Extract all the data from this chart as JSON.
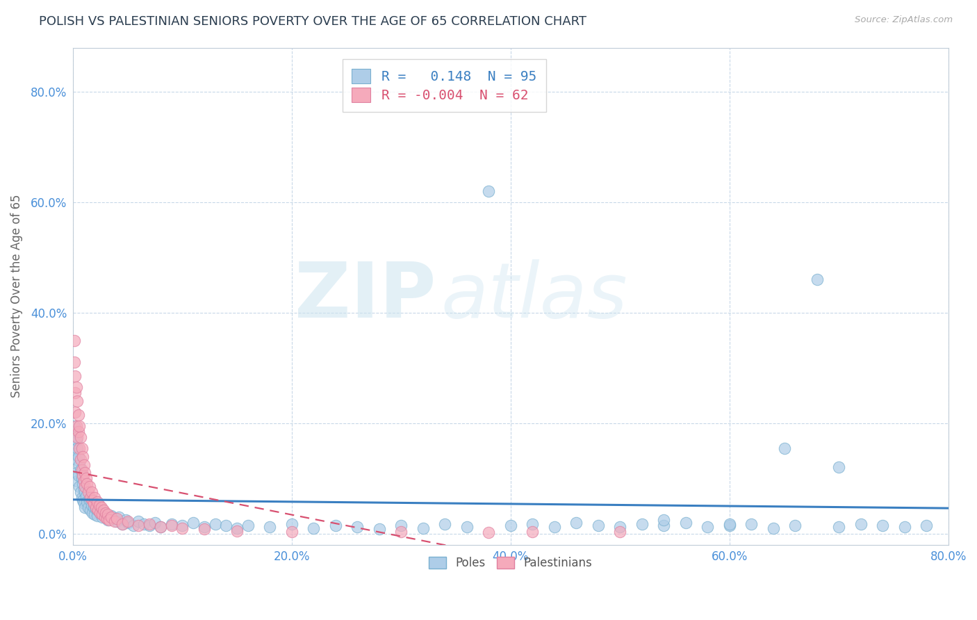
{
  "title": "POLISH VS PALESTINIAN SENIORS POVERTY OVER THE AGE OF 65 CORRELATION CHART",
  "source": "Source: ZipAtlas.com",
  "ylabel": "Seniors Poverty Over the Age of 65",
  "xlim": [
    0.0,
    0.8
  ],
  "ylim": [
    -0.02,
    0.88
  ],
  "yticks": [
    0.0,
    0.2,
    0.4,
    0.6,
    0.8
  ],
  "xticks": [
    0.0,
    0.2,
    0.4,
    0.6,
    0.8
  ],
  "poles_color": "#aecde8",
  "poles_edge_color": "#7ab0d0",
  "palestinians_color": "#f5aabb",
  "palestinians_edge_color": "#e080a0",
  "trend_poles_color": "#3a7fc1",
  "trend_palestinians_color": "#d85070",
  "legend_label_poles": "R =   0.148  N = 95",
  "legend_label_palestinians": "R = -0.004  N = 62",
  "watermark_zip": "ZIP",
  "watermark_atlas": "atlas",
  "background_color": "#ffffff",
  "grid_color": "#c8d8e8",
  "title_color": "#2c3e50",
  "axis_tick_color": "#4a90d9",
  "axis_label_color": "#666666",
  "poles_x": [
    0.001,
    0.001,
    0.002,
    0.002,
    0.003,
    0.003,
    0.003,
    0.004,
    0.004,
    0.005,
    0.005,
    0.006,
    0.006,
    0.007,
    0.007,
    0.008,
    0.008,
    0.009,
    0.009,
    0.01,
    0.01,
    0.011,
    0.011,
    0.012,
    0.013,
    0.014,
    0.015,
    0.016,
    0.017,
    0.018,
    0.019,
    0.02,
    0.021,
    0.022,
    0.023,
    0.025,
    0.027,
    0.03,
    0.032,
    0.035,
    0.038,
    0.04,
    0.042,
    0.045,
    0.048,
    0.05,
    0.055,
    0.06,
    0.065,
    0.07,
    0.075,
    0.08,
    0.09,
    0.1,
    0.11,
    0.12,
    0.13,
    0.14,
    0.15,
    0.16,
    0.18,
    0.2,
    0.22,
    0.24,
    0.26,
    0.28,
    0.3,
    0.32,
    0.34,
    0.36,
    0.38,
    0.4,
    0.42,
    0.44,
    0.46,
    0.48,
    0.5,
    0.52,
    0.54,
    0.56,
    0.58,
    0.6,
    0.62,
    0.64,
    0.66,
    0.68,
    0.7,
    0.72,
    0.74,
    0.76,
    0.78,
    0.54,
    0.6,
    0.65,
    0.7
  ],
  "poles_y": [
    0.195,
    0.165,
    0.185,
    0.145,
    0.17,
    0.135,
    0.11,
    0.155,
    0.095,
    0.14,
    0.105,
    0.125,
    0.085,
    0.115,
    0.075,
    0.1,
    0.065,
    0.09,
    0.06,
    0.08,
    0.055,
    0.075,
    0.048,
    0.068,
    0.058,
    0.048,
    0.062,
    0.042,
    0.052,
    0.038,
    0.048,
    0.035,
    0.045,
    0.032,
    0.042,
    0.038,
    0.03,
    0.035,
    0.025,
    0.032,
    0.028,
    0.022,
    0.03,
    0.018,
    0.025,
    0.02,
    0.015,
    0.022,
    0.018,
    0.015,
    0.02,
    0.012,
    0.018,
    0.015,
    0.02,
    0.012,
    0.018,
    0.015,
    0.01,
    0.015,
    0.012,
    0.018,
    0.01,
    0.015,
    0.012,
    0.008,
    0.015,
    0.01,
    0.018,
    0.012,
    0.62,
    0.015,
    0.018,
    0.012,
    0.02,
    0.015,
    0.012,
    0.018,
    0.015,
    0.02,
    0.012,
    0.015,
    0.018,
    0.01,
    0.015,
    0.46,
    0.012,
    0.018,
    0.015,
    0.012,
    0.015,
    0.025,
    0.018,
    0.155,
    0.12
  ],
  "palestinians_x": [
    0.001,
    0.001,
    0.002,
    0.002,
    0.002,
    0.003,
    0.003,
    0.004,
    0.004,
    0.005,
    0.005,
    0.006,
    0.006,
    0.007,
    0.007,
    0.008,
    0.008,
    0.009,
    0.009,
    0.01,
    0.01,
    0.011,
    0.011,
    0.012,
    0.013,
    0.014,
    0.015,
    0.016,
    0.017,
    0.018,
    0.019,
    0.02,
    0.021,
    0.022,
    0.023,
    0.024,
    0.025,
    0.026,
    0.027,
    0.028,
    0.029,
    0.03,
    0.031,
    0.032,
    0.033,
    0.035,
    0.038,
    0.04,
    0.045,
    0.05,
    0.06,
    0.07,
    0.08,
    0.09,
    0.1,
    0.12,
    0.15,
    0.2,
    0.3,
    0.38,
    0.42,
    0.5
  ],
  "palestinians_y": [
    0.35,
    0.31,
    0.285,
    0.255,
    0.22,
    0.265,
    0.195,
    0.24,
    0.175,
    0.215,
    0.185,
    0.195,
    0.155,
    0.175,
    0.135,
    0.155,
    0.115,
    0.14,
    0.105,
    0.125,
    0.095,
    0.11,
    0.085,
    0.1,
    0.09,
    0.075,
    0.085,
    0.065,
    0.075,
    0.06,
    0.055,
    0.065,
    0.048,
    0.058,
    0.042,
    0.052,
    0.038,
    0.048,
    0.035,
    0.042,
    0.03,
    0.038,
    0.028,
    0.035,
    0.025,
    0.03,
    0.022,
    0.028,
    0.018,
    0.022,
    0.015,
    0.018,
    0.012,
    0.015,
    0.01,
    0.008,
    0.005,
    0.004,
    0.003,
    0.002,
    0.004,
    0.003
  ]
}
